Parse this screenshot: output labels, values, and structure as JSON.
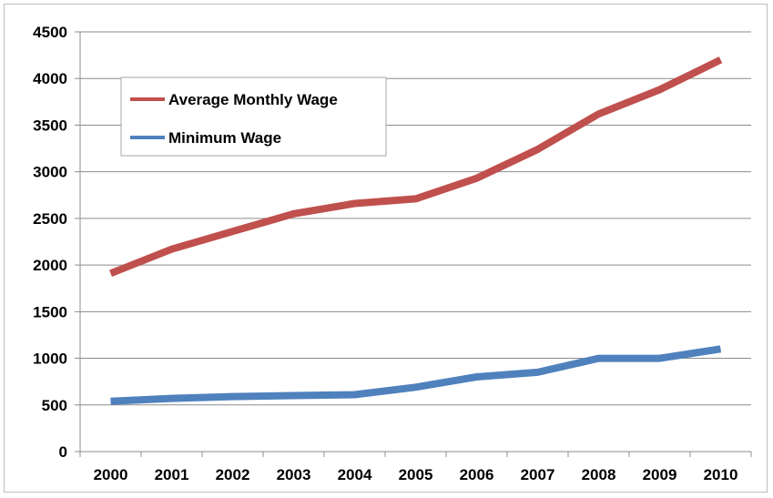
{
  "chart_data": {
    "type": "line",
    "title": "",
    "xlabel": "",
    "ylabel": "",
    "categories": [
      "2000",
      "2001",
      "2002",
      "2003",
      "2004",
      "2005",
      "2006",
      "2007",
      "2008",
      "2009",
      "2010"
    ],
    "ylim": [
      0,
      4500
    ],
    "yticks": [
      "0",
      "500",
      "1000",
      "1500",
      "2000",
      "2500",
      "3000",
      "3500",
      "4000",
      "4500"
    ],
    "grid": true,
    "legend_position": "top-left",
    "series": [
      {
        "name": "Average Monthly Wage",
        "color": "#c0504d",
        "values": [
          1910,
          2170,
          2360,
          2550,
          2660,
          2710,
          2930,
          3240,
          3620,
          3880,
          4200
        ]
      },
      {
        "name": "Minimum Wage",
        "color": "#4f81bd",
        "values": [
          540,
          570,
          590,
          600,
          610,
          690,
          800,
          850,
          1000,
          1000,
          1100
        ]
      }
    ]
  }
}
